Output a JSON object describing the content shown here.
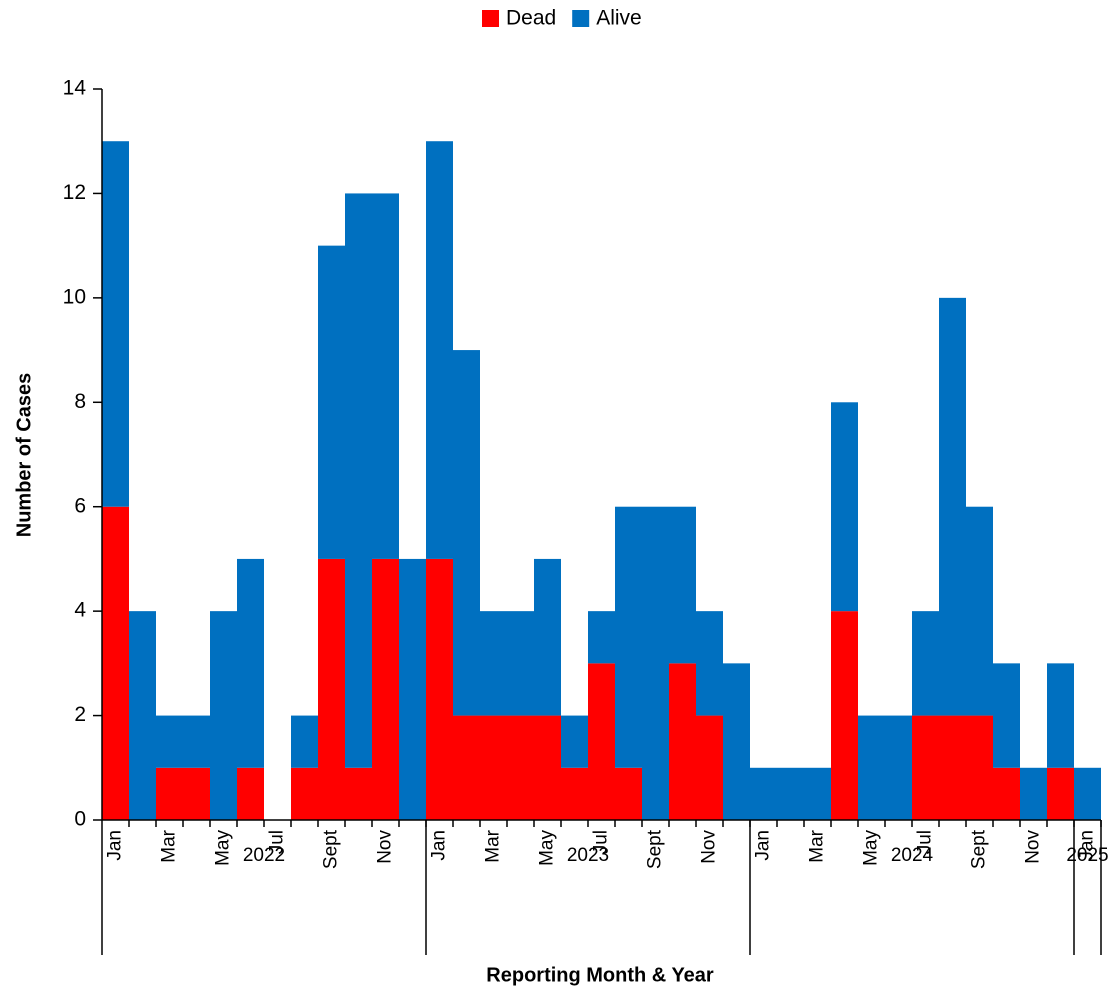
{
  "chart_data": {
    "type": "stacked-bar",
    "x_label": "Reporting Month & Year",
    "y_label": "Number of Cases",
    "categories": [
      "Jan",
      null,
      "Mar",
      null,
      "May",
      null,
      "Jul",
      null,
      "Sept",
      null,
      "Nov",
      null,
      "Jan",
      null,
      "Mar",
      null,
      "May",
      null,
      "Jul",
      null,
      "Sept",
      null,
      "Nov",
      null,
      "Jan",
      null,
      "Mar",
      null,
      "May",
      null,
      "Jul",
      null,
      "Sept",
      null,
      "Nov",
      null,
      "Jan"
    ],
    "groups": [
      {
        "label": "2022",
        "size": 12
      },
      {
        "label": "2023",
        "size": 12
      },
      {
        "label": "2024",
        "size": 12
      },
      {
        "label": "2025",
        "size": 1
      }
    ],
    "series": [
      {
        "name": "Dead",
        "color": "#ff0000",
        "values": [
          6,
          0,
          1,
          1,
          0,
          1,
          0,
          1,
          5,
          1,
          5,
          0,
          5,
          2,
          2,
          2,
          2,
          1,
          3,
          1,
          0,
          3,
          2,
          0,
          0,
          0,
          0,
          4,
          0,
          0,
          2,
          2,
          2,
          1,
          0,
          1,
          0
        ]
      },
      {
        "name": "Alive",
        "color": "#0070c0",
        "values": [
          7,
          4,
          1,
          1,
          4,
          4,
          0,
          1,
          6,
          11,
          7,
          5,
          8,
          7,
          2,
          2,
          3,
          1,
          1,
          5,
          6,
          3,
          2,
          3,
          1,
          1,
          1,
          4,
          2,
          2,
          2,
          8,
          4,
          2,
          1,
          2,
          1
        ]
      }
    ],
    "ylim": [
      0,
      14
    ],
    "yticks": [
      0,
      2,
      4,
      6,
      8,
      10,
      12,
      14
    ],
    "legend": "top"
  }
}
